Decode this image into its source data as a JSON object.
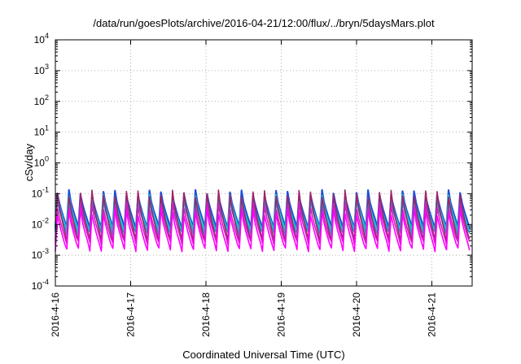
{
  "chart_data": {
    "type": "line",
    "title": "/data/run/goesPlots/archive/2016-04-21/12:00/flux/../bryn/5daysMars.plot",
    "xlabel": "Coordinated Universal Time (UTC)",
    "ylabel": "cSv/day",
    "y_scale": "log",
    "ylim": [
      0.0001,
      10000
    ],
    "y_ticks": [
      {
        "base": "10",
        "exp": "4",
        "value": 10000
      },
      {
        "base": "10",
        "exp": "3",
        "value": 1000
      },
      {
        "base": "10",
        "exp": "2",
        "value": 100
      },
      {
        "base": "10",
        "exp": "1",
        "value": 10
      },
      {
        "base": "10",
        "exp": "0",
        "value": 1
      },
      {
        "base": "10",
        "exp": "-1",
        "value": 0.1
      },
      {
        "base": "10",
        "exp": "-2",
        "value": 0.01
      },
      {
        "base": "10",
        "exp": "-3",
        "value": 0.001
      },
      {
        "base": "10",
        "exp": "-4",
        "value": 0.0001
      }
    ],
    "xlim": [
      "2016-04-16",
      "2016-04-21 12:00"
    ],
    "x_ticks": [
      "2016-4-16",
      "2016-4-17",
      "2016-4-18",
      "2016-4-19",
      "2016-4-20",
      "2016-4-21"
    ],
    "grid": true,
    "cycles_per_day": 6.5,
    "series": [
      {
        "color": "#1f4fd8",
        "peak": 0.1,
        "trough": 0.008
      },
      {
        "color": "#17c8c8",
        "peak": 0.07,
        "trough": 0.006
      },
      {
        "color": "#3a8fd0",
        "peak": 0.05,
        "trough": 0.005
      },
      {
        "color": "#a0226a",
        "peak": 0.1,
        "trough": 0.003
      },
      {
        "color": "#d21fc0",
        "peak": 0.04,
        "trough": 0.0025
      },
      {
        "color": "#ff00ff",
        "peak": 0.025,
        "trough": 0.0015
      }
    ]
  }
}
